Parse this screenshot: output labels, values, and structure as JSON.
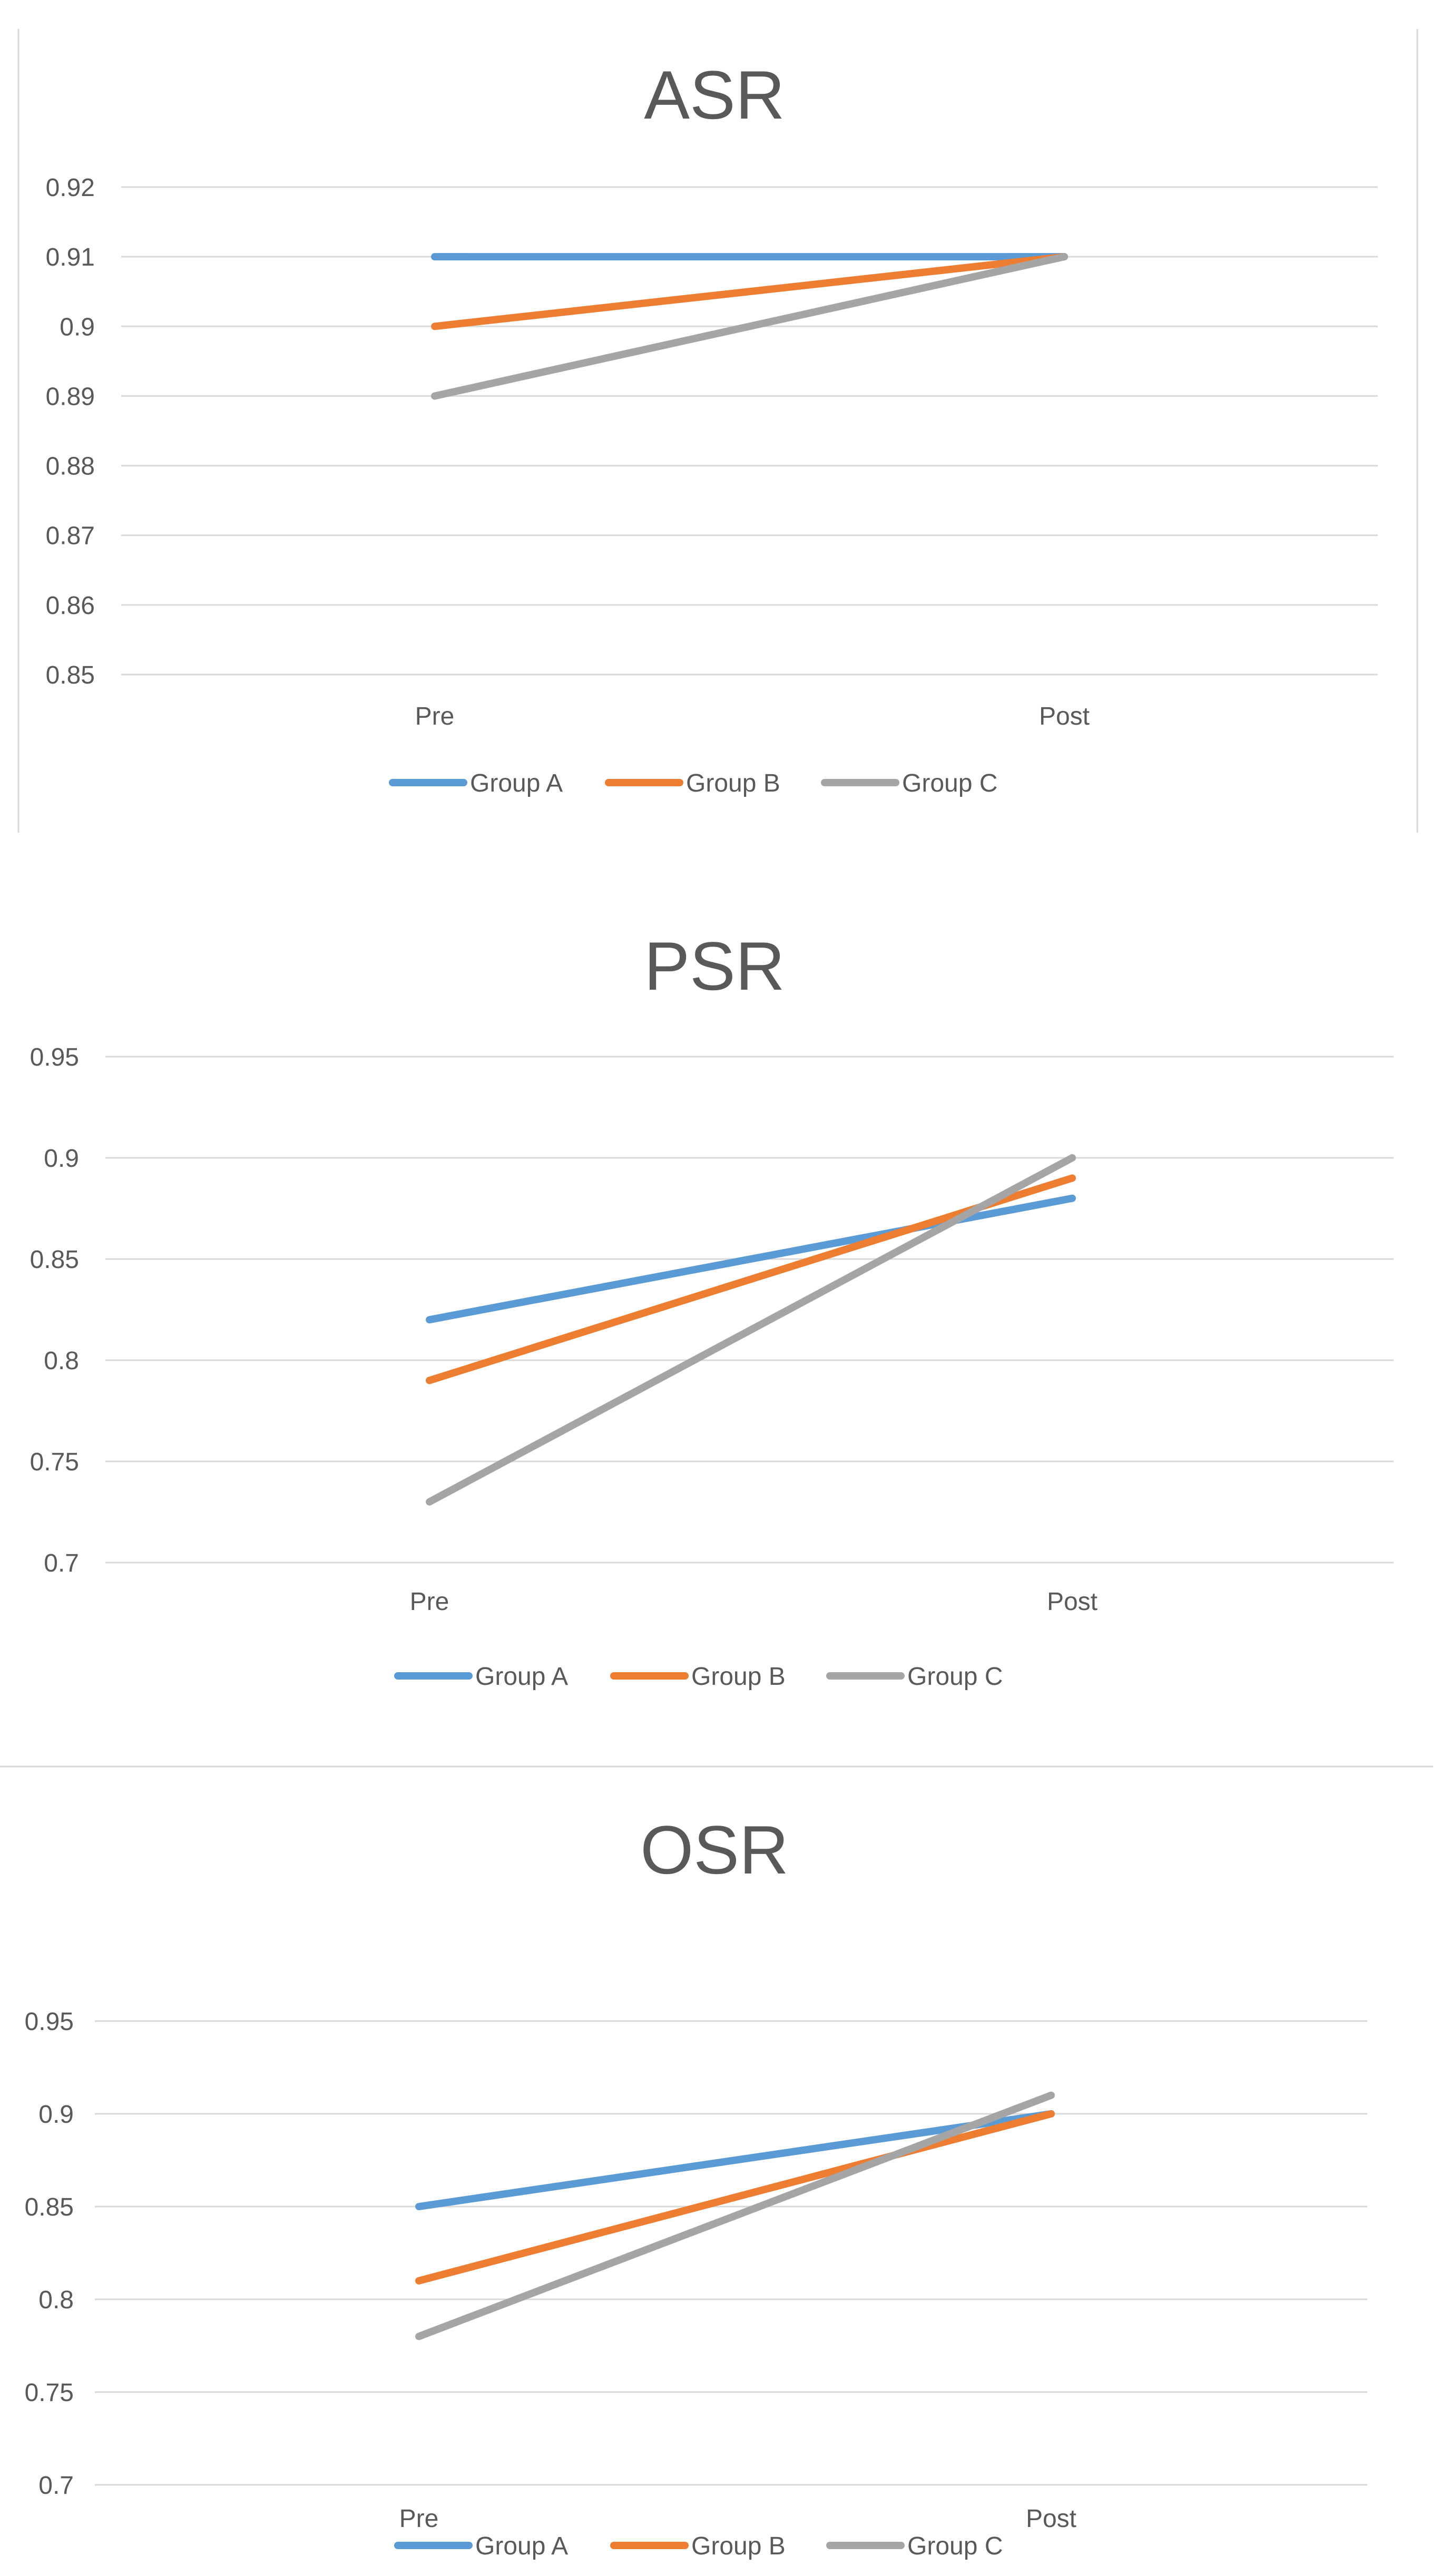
{
  "colors": {
    "group_a": "#5B9BD5",
    "group_b": "#ED7D31",
    "group_c": "#A5A5A5",
    "grid": "#D9D9D9",
    "text": "#595959"
  },
  "chart_data": [
    {
      "type": "line",
      "title": "ASR",
      "categories": [
        "Pre",
        "Post"
      ],
      "ylim": [
        0.85,
        0.92
      ],
      "yticks": [
        "0.92",
        "0.91",
        "0.9",
        "0.89",
        "0.88",
        "0.87",
        "0.86",
        "0.85"
      ],
      "grid": true,
      "legend_position": "bottom",
      "series": [
        {
          "name": "Group A",
          "values": [
            0.91,
            0.91
          ]
        },
        {
          "name": "Group B",
          "values": [
            0.9,
            0.91
          ]
        },
        {
          "name": "Group C",
          "values": [
            0.89,
            0.91
          ]
        }
      ]
    },
    {
      "type": "line",
      "title": "PSR",
      "categories": [
        "Pre",
        "Post"
      ],
      "ylim": [
        0.7,
        0.95
      ],
      "yticks": [
        "0.95",
        "0.9",
        "0.85",
        "0.8",
        "0.75",
        "0.7"
      ],
      "grid": true,
      "legend_position": "bottom",
      "series": [
        {
          "name": "Group A",
          "values": [
            0.82,
            0.88
          ]
        },
        {
          "name": "Group B",
          "values": [
            0.79,
            0.89
          ]
        },
        {
          "name": "Group C",
          "values": [
            0.73,
            0.9
          ]
        }
      ]
    },
    {
      "type": "line",
      "title": "OSR",
      "categories": [
        "Pre",
        "Post"
      ],
      "ylim": [
        0.7,
        0.95
      ],
      "yticks": [
        "0.95",
        "0.9",
        "0.85",
        "0.8",
        "0.75",
        "0.7"
      ],
      "grid": true,
      "legend_position": "bottom",
      "series": [
        {
          "name": "Group A",
          "values": [
            0.85,
            0.9
          ]
        },
        {
          "name": "Group B",
          "values": [
            0.81,
            0.9
          ]
        },
        {
          "name": "Group C",
          "values": [
            0.78,
            0.91
          ]
        }
      ]
    }
  ]
}
